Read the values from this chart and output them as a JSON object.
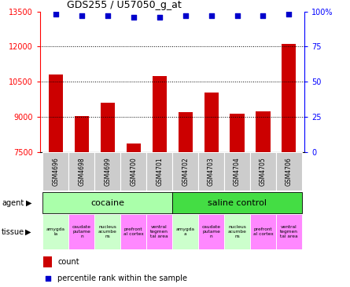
{
  "title": "GDS255 / U57050_g_at",
  "samples": [
    "GSM4696",
    "GSM4698",
    "GSM4699",
    "GSM4700",
    "GSM4701",
    "GSM4702",
    "GSM4703",
    "GSM4704",
    "GSM4705",
    "GSM4706"
  ],
  "counts": [
    10800,
    9050,
    9600,
    7870,
    10750,
    9200,
    10050,
    9150,
    9250,
    12100
  ],
  "percentiles": [
    98,
    97,
    97,
    96,
    96,
    97,
    97,
    97,
    97,
    98
  ],
  "ylim": [
    7500,
    13500
  ],
  "yticks": [
    7500,
    9000,
    10500,
    12000,
    13500
  ],
  "right_yticks": [
    0,
    25,
    50,
    75,
    100
  ],
  "right_ylabels": [
    "0",
    "25",
    "50",
    "75",
    "100%"
  ],
  "grid_values": [
    9000,
    10500,
    12000
  ],
  "bar_color": "#cc0000",
  "dot_color": "#0000cc",
  "agent_cocaine_color": "#aaffaa",
  "agent_saline_color": "#44dd44",
  "tissue_green_color": "#ccffcc",
  "tissue_pink_color": "#ff88ff",
  "sample_bg_color": "#cccccc",
  "tissue_labels_cocaine": [
    "amygda\nla",
    "caudate\nputame\nn",
    "nucleus\nacumbe\nns",
    "prefront\nal cortex",
    "ventral\ntegmen\ntal area"
  ],
  "tissue_labels_saline": [
    "amygda\na",
    "caudate\nputame\nn",
    "nucleus\nacumbe\nns",
    "prefront\nal cortex",
    "ventral\ntegmen\ntal area"
  ],
  "tissue_colors": [
    "#ccffcc",
    "#ff88ff",
    "#ccffcc",
    "#ff88ff",
    "#ff88ff"
  ],
  "legend_count_label": "count",
  "legend_pct_label": "percentile rank within the sample"
}
